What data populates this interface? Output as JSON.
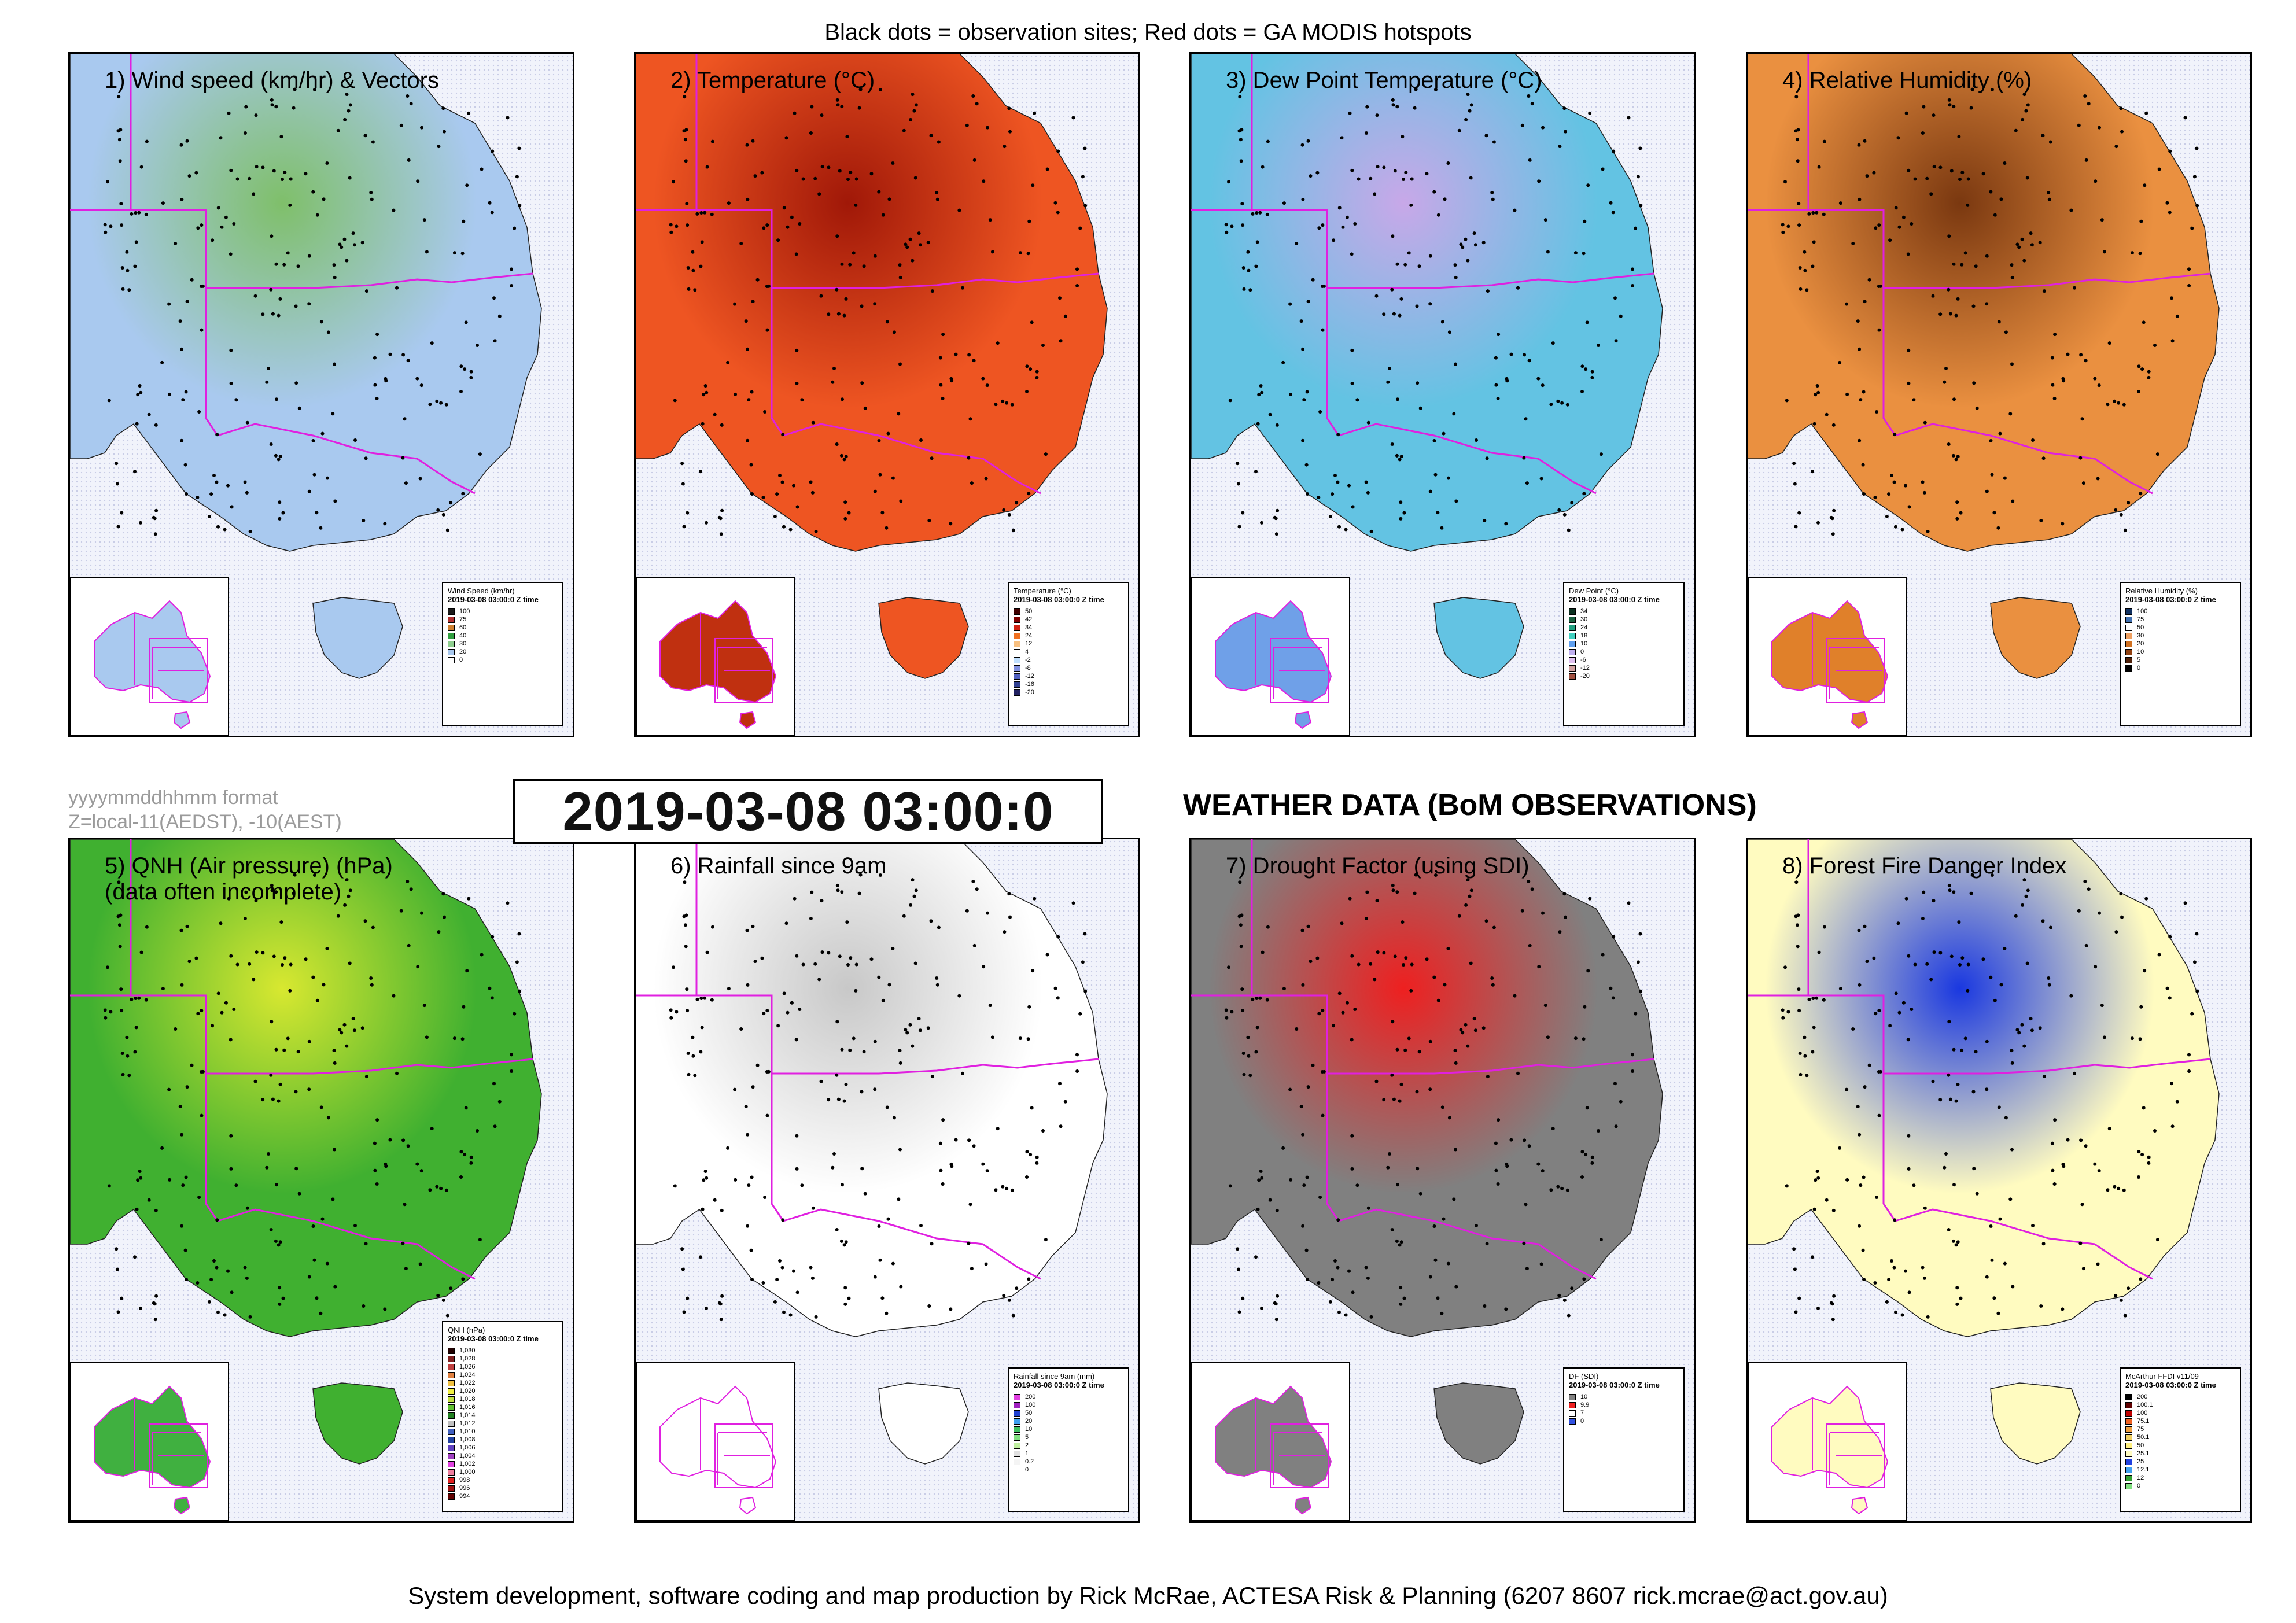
{
  "header": {
    "text": "Black dots = observation sites; Red dots = GA MODIS hotspots"
  },
  "footer": {
    "text": "System development, software coding and map production by Rick McRae, ACTESA Risk & Planning (6207 8607 rick.mcrae@act.gov.au)"
  },
  "format_note": {
    "line1": "yyyymmddhhmm format",
    "line2": "Z=local-11(AEDST), -10(AEST)"
  },
  "timestamp": "2019-03-08 03:00:0",
  "main_title": "WEATHER DATA (BoM OBSERVATIONS)",
  "legend_time": "2019-03-08 03:00:0 Z time",
  "panels": [
    {
      "title": "1) Wind speed (km/hr) & Vectors",
      "legend_title": "Wind Speed (km/hr)",
      "fill": "#a9c9ef",
      "accent": "#7fbf6a",
      "inset_fill": "#a9c9ef",
      "legend": [
        {
          "label": "100",
          "color": "#1a1a1a"
        },
        {
          "label": "75",
          "color": "#b03030"
        },
        {
          "label": "60",
          "color": "#d08030"
        },
        {
          "label": "40",
          "color": "#2f9f3f"
        },
        {
          "label": "30",
          "color": "#8fcf8f"
        },
        {
          "label": "20",
          "color": "#a9c9ef"
        },
        {
          "label": "0",
          "color": "#ffffff"
        }
      ]
    },
    {
      "title": "2) Temperature (°C)",
      "legend_title": "Temperature (°C)",
      "fill": "#ee5522",
      "accent": "#a01808",
      "inset_fill": "#c03010",
      "legend": [
        {
          "label": "50",
          "color": "#400000"
        },
        {
          "label": "42",
          "color": "#800000"
        },
        {
          "label": "34",
          "color": "#d02010"
        },
        {
          "label": "24",
          "color": "#f07020"
        },
        {
          "label": "12",
          "color": "#f8c080"
        },
        {
          "label": "4",
          "color": "#ffffff"
        },
        {
          "label": "-2",
          "color": "#c0e0ff"
        },
        {
          "label": "-8",
          "color": "#8090e0"
        },
        {
          "label": "-12",
          "color": "#5060c0"
        },
        {
          "label": "-16",
          "color": "#304090"
        },
        {
          "label": "-20",
          "color": "#202060"
        }
      ]
    },
    {
      "title": "3) Dew Point Temperature (°C)",
      "legend_title": "Dew Point (°C)",
      "fill": "#63c3e3",
      "accent": "#c8a8e8",
      "inset_fill": "#6fa0e8",
      "legend": [
        {
          "label": "34",
          "color": "#0a3020"
        },
        {
          "label": "30",
          "color": "#1a6040"
        },
        {
          "label": "24",
          "color": "#20a080"
        },
        {
          "label": "18",
          "color": "#40d0c0"
        },
        {
          "label": "10",
          "color": "#60a0f0"
        },
        {
          "label": "0",
          "color": "#c0b0f0"
        },
        {
          "label": "-6",
          "color": "#e0c0f0"
        },
        {
          "label": "-12",
          "color": "#d0a0a0"
        },
        {
          "label": "-20",
          "color": "#a05040"
        }
      ]
    },
    {
      "title": "4) Relative Humidity (%)",
      "legend_title": "Relative Humidity (%)",
      "fill": "#ea9040",
      "accent": "#7a3810",
      "inset_fill": "#e0802a",
      "legend": [
        {
          "label": "100",
          "color": "#103060"
        },
        {
          "label": "75",
          "color": "#4070b0"
        },
        {
          "label": "50",
          "color": "#ffffff"
        },
        {
          "label": "30",
          "color": "#f0a060"
        },
        {
          "label": "20",
          "color": "#d07020"
        },
        {
          "label": "10",
          "color": "#904010"
        },
        {
          "label": "5",
          "color": "#502008"
        },
        {
          "label": "0",
          "color": "#000000"
        }
      ]
    },
    {
      "title": "5) QNH (Air pressure) (hPa)",
      "title2": "(data often incomplete)",
      "legend_title": "QNH (hPa)",
      "fill": "#40b030",
      "accent": "#d8e830",
      "inset_fill": "#40b040",
      "legend": [
        {
          "label": "1,030",
          "color": "#200000"
        },
        {
          "label": "1,028",
          "color": "#802020"
        },
        {
          "label": "1,026",
          "color": "#c04040"
        },
        {
          "label": "1,024",
          "color": "#e08040"
        },
        {
          "label": "1,022",
          "color": "#f0c040"
        },
        {
          "label": "1,020",
          "color": "#f0f040"
        },
        {
          "label": "1,018",
          "color": "#c0e040"
        },
        {
          "label": "1,016",
          "color": "#60c030"
        },
        {
          "label": "1,014",
          "color": "#208020"
        },
        {
          "label": "1,012",
          "color": "#c0c0c0"
        },
        {
          "label": "1,010",
          "color": "#4060c0"
        },
        {
          "label": "1,008",
          "color": "#2040a0"
        },
        {
          "label": "1,006",
          "color": "#6040c0"
        },
        {
          "label": "1,004",
          "color": "#a040c0"
        },
        {
          "label": "1,002",
          "color": "#e040e0"
        },
        {
          "label": "1,000",
          "color": "#f080a0"
        },
        {
          "label": "998",
          "color": "#e02020"
        },
        {
          "label": "996",
          "color": "#a01010"
        },
        {
          "label": "994",
          "color": "#600000"
        }
      ]
    },
    {
      "title": "6) Rainfall since 9am",
      "legend_title": "Rainfall since 9am (mm)",
      "fill": "#ffffff",
      "accent": "#c8c8c8",
      "inset_fill": "#ffffff",
      "legend": [
        {
          "label": "200",
          "color": "#e040e0"
        },
        {
          "label": "100",
          "color": "#a020c0"
        },
        {
          "label": "50",
          "color": "#2040d0"
        },
        {
          "label": "20",
          "color": "#40a0f0"
        },
        {
          "label": "10",
          "color": "#40c060"
        },
        {
          "label": "5",
          "color": "#80e080"
        },
        {
          "label": "2",
          "color": "#c0f0a0"
        },
        {
          "label": "1",
          "color": "#e0e0e0"
        },
        {
          "label": "0.2",
          "color": "#f4f4f4"
        },
        {
          "label": "0",
          "color": "#ffffff"
        }
      ]
    },
    {
      "title": "7) Drought Factor (using SDI)",
      "legend_title": "DF (SDI)",
      "fill": "#808080",
      "accent": "#ee2020",
      "inset_fill": "#808080",
      "legend": [
        {
          "label": "10",
          "color": "#808080"
        },
        {
          "label": "9.9",
          "color": "#ee2020"
        },
        {
          "label": "7",
          "color": "#ffffff"
        },
        {
          "label": "0",
          "color": "#3050e0"
        }
      ]
    },
    {
      "title": "8) Forest Fire Danger Index",
      "legend_title": "McArthur FFDI v11/09",
      "fill": "#fffbc0",
      "accent": "#1a38e0",
      "inset_fill": "#fffbc0",
      "legend": [
        {
          "label": "200",
          "color": "#000000"
        },
        {
          "label": "100.1",
          "color": "#600000"
        },
        {
          "label": "100",
          "color": "#c00000"
        },
        {
          "label": "75.1",
          "color": "#f06020"
        },
        {
          "label": "75",
          "color": "#f0a040"
        },
        {
          "label": "50.1",
          "color": "#f0d060"
        },
        {
          "label": "50",
          "color": "#fff080"
        },
        {
          "label": "25.1",
          "color": "#fffbc0"
        },
        {
          "label": "25",
          "color": "#2040e0"
        },
        {
          "label": "12.1",
          "color": "#40a0f0"
        },
        {
          "label": "12",
          "color": "#30a030"
        },
        {
          "label": "0",
          "color": "#80e080"
        }
      ]
    }
  ]
}
